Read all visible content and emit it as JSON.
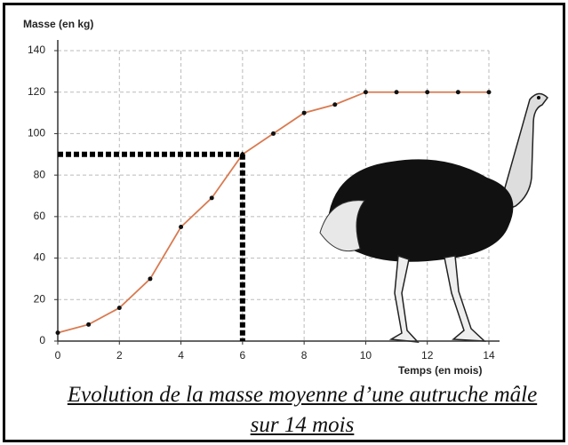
{
  "chart_data": {
    "type": "line",
    "title": "Evolution de la masse moyenne d’une autruche mâle sur 14 mois",
    "y_label": "Masse (en kg)",
    "x_label": "Temps (en mois)",
    "x": [
      0,
      1,
      2,
      3,
      4,
      5,
      6,
      7,
      8,
      9,
      10,
      11,
      12,
      13,
      14
    ],
    "series": [
      {
        "color": "#d97a50",
        "values": [
          4,
          8,
          16,
          30,
          55,
          69,
          90,
          100,
          110,
          114,
          120,
          120,
          120,
          120,
          120
        ]
      }
    ],
    "xlim": [
      0,
      14
    ],
    "xticks": [
      0,
      2,
      4,
      6,
      8,
      10,
      12,
      14
    ],
    "ylim": [
      0,
      140
    ],
    "yticks": [
      0,
      20,
      40,
      60,
      80,
      100,
      120,
      140
    ],
    "grid": true,
    "guide": {
      "x": 6,
      "y": 90
    }
  }
}
